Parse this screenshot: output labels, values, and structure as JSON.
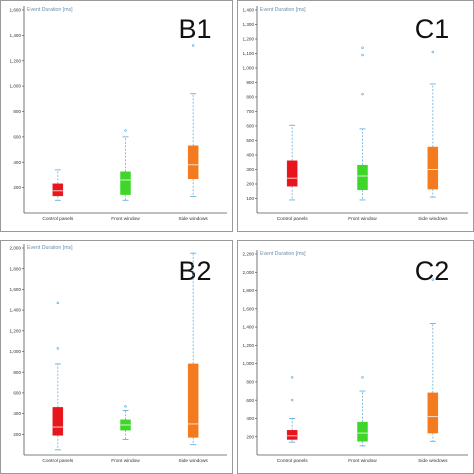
{
  "chart_data": [
    {
      "panel_label": "B1",
      "type": "box",
      "ylabel": "Event Duration [ms]",
      "ylim": [
        0,
        1600
      ],
      "yticks": [
        200,
        400,
        600,
        800,
        1000,
        1200,
        1400,
        1600
      ],
      "ytick_labels": [
        "200",
        "400",
        "600",
        "800",
        "1,000",
        "1,200",
        "1,400",
        "1,600"
      ],
      "categories": [
        "Control panels",
        "Front window",
        "Side windows"
      ],
      "colors": [
        "#e8151b",
        "#3fd62a",
        "#f47a1f"
      ],
      "boxes": [
        {
          "whisker_low": 100,
          "q1": 135,
          "median": 175,
          "q3": 230,
          "whisker_high": 340,
          "outliers": []
        },
        {
          "whisker_low": 100,
          "q1": 145,
          "median": 260,
          "q3": 325,
          "whisker_high": 600,
          "outliers": [
            650
          ]
        },
        {
          "whisker_low": 130,
          "q1": 270,
          "median": 380,
          "q3": 530,
          "whisker_high": 940,
          "outliers": [
            1320
          ]
        }
      ]
    },
    {
      "panel_label": "C1",
      "type": "box",
      "ylabel": "Event Duration [ms]",
      "ylim": [
        0,
        1400
      ],
      "yticks": [
        100,
        200,
        300,
        400,
        500,
        600,
        700,
        800,
        900,
        1000,
        1100,
        1200,
        1300,
        1400
      ],
      "ytick_labels": [
        "100",
        "200",
        "300",
        "400",
        "500",
        "600",
        "700",
        "800",
        "900",
        "1,000",
        "1,100",
        "1,200",
        "1,300",
        "1,400"
      ],
      "categories": [
        "Control panels",
        "Front window",
        "Side windows"
      ],
      "colors": [
        "#e8151b",
        "#3fd62a",
        "#f47a1f"
      ],
      "boxes": [
        {
          "whisker_low": 90,
          "q1": 185,
          "median": 240,
          "q3": 360,
          "whisker_high": 605,
          "outliers": []
        },
        {
          "whisker_low": 90,
          "q1": 160,
          "median": 255,
          "q3": 330,
          "whisker_h": 0,
          "whisker_high": 580,
          "outliers": [
            820,
            1090,
            1140
          ]
        },
        {
          "whisker_low": 110,
          "q1": 165,
          "median": 300,
          "q3": 455,
          "whisker_high": 890,
          "outliers": [
            1110
          ]
        }
      ]
    },
    {
      "panel_label": "B2",
      "type": "box",
      "ylabel": "Event Duration [ms]",
      "ylim": [
        0,
        2000
      ],
      "yticks": [
        200,
        400,
        600,
        800,
        1000,
        1200,
        1400,
        1600,
        1800,
        2000
      ],
      "ytick_labels": [
        "200",
        "400",
        "600",
        "800",
        "1,000",
        "1,200",
        "1,400",
        "1,600",
        "1,800",
        "2,000"
      ],
      "categories": [
        "Control panels",
        "Front window",
        "Side windows"
      ],
      "colors": [
        "#e8151b",
        "#3fd62a",
        "#f47a1f"
      ],
      "boxes": [
        {
          "whisker_low": 50,
          "q1": 190,
          "median": 270,
          "q3": 460,
          "whisker_high": 880,
          "outliers": [
            1030,
            1470
          ]
        },
        {
          "whisker_low": 150,
          "q1": 240,
          "median": 290,
          "q3": 340,
          "whisker_high": 430,
          "outliers": [
            470
          ]
        },
        {
          "whisker_low": 100,
          "q1": 170,
          "median": 300,
          "q3": 880,
          "whisker_high": 1950,
          "outliers": []
        }
      ]
    },
    {
      "panel_label": "C2",
      "type": "box",
      "ylabel": "Event Duration [ms]",
      "ylim": [
        0,
        2200
      ],
      "yticks": [
        200,
        400,
        600,
        800,
        1000,
        1200,
        1400,
        1600,
        1800,
        2000,
        2200
      ],
      "ytick_labels": [
        "200",
        "400",
        "600",
        "800",
        "1,000",
        "1,200",
        "1,400",
        "1,600",
        "1,800",
        "2,000",
        "2,200"
      ],
      "categories": [
        "Control panels",
        "Front window",
        "Side windows"
      ],
      "colors": [
        "#e8151b",
        "#3fd62a",
        "#f47a1f"
      ],
      "boxes": [
        {
          "whisker_low": 140,
          "q1": 170,
          "median": 210,
          "q3": 270,
          "whisker_high": 400,
          "outliers": [
            600,
            850
          ]
        },
        {
          "whisker_low": 100,
          "q1": 150,
          "median": 240,
          "q3": 360,
          "whisker_high": 700,
          "outliers": [
            850
          ]
        },
        {
          "whisker_low": 150,
          "q1": 240,
          "median": 420,
          "q3": 680,
          "whisker_high": 1440,
          "outliers": [
            1920
          ]
        }
      ]
    }
  ]
}
